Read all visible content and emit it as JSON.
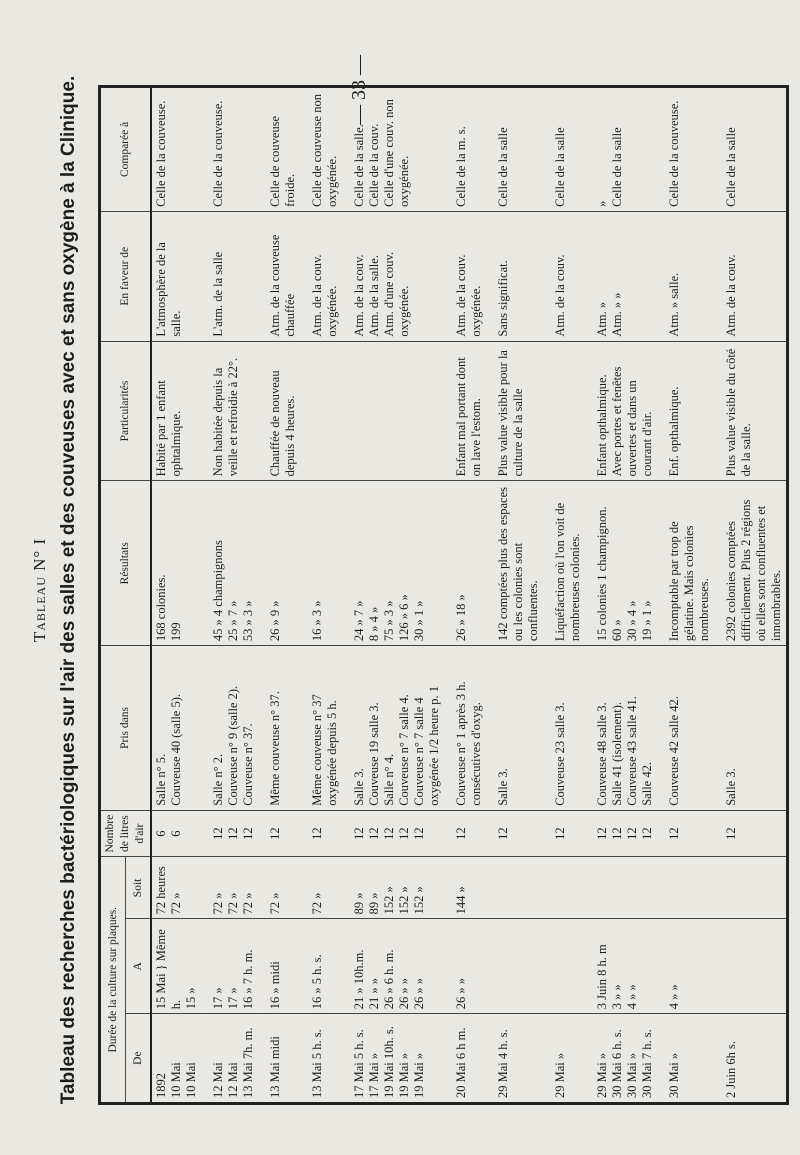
{
  "page_number": "— 33 —",
  "caption": "Tableau N° I",
  "title": "Tableau des recherches bactériologiques sur l'air des salles et des couveuses avec et sans oxygène à la Clinique.",
  "table": {
    "group_header": "Durée de la culture sur plaques.",
    "headers": [
      "De",
      "A",
      "Soit",
      "Nombre de litres d'air",
      "Pris dans",
      "Résultats",
      "Particularités",
      "En faveur de",
      "Comparée à"
    ],
    "rows": [
      [
        "1892\n10 Mai\n10 Mai",
        "15 Mai } Même h.\n15 »",
        "72 heures\n72 »",
        "6\n6",
        "Salle n° 5.\nCouveuse 40 (salle 5).",
        "168 colonies.\n199",
        "Habité par 1 enfant ophtalmique.",
        "L'atmosphère de la salle.",
        "Celle de la couveuse."
      ],
      [
        "12 Mai\n12 Mai\n13 Mai 7h. m.",
        "17 »\n17 »\n16 » 7 h. m.",
        "72 »\n72 »\n72 »",
        "12\n12\n12",
        "Salle n° 2.\nCouveuse n° 9 (salle 2).\nCouveuse n° 37.",
        "45 » 4 champignons\n25 » 7 »\n53 » 3 »",
        "Non habitée depuis la veille et refroidie à 22°.",
        "L'atm. de la salle",
        "Celle de la couveuse."
      ],
      [
        "13 Mai midi",
        "16 » midi",
        "72 »",
        "12",
        "Même couveuse n° 37.",
        "26 » 9 »",
        "Chauffée de nouveau depuis 4 heures.",
        "Atm. de la couveuse chauffée",
        "Celle de couveuse froide."
      ],
      [
        "13 Mai 5 h. s.",
        "16 » 5 h. s.",
        "72 »",
        "12",
        "Même couveuse n° 37 oxygénée depuis 5 h.",
        "16 » 3 »",
        "",
        "Atm. de la couv. oxygénée.",
        "Celle de couveuse non oxygénée."
      ],
      [
        "17 Mai 5 h. s.\n17 Mai »\n19 Mai 10h. s.\n19 Mai »\n19 Mai »",
        "21 » 10h.m.\n21 » »\n26 » 6 h. m.\n26 » »\n26 » »",
        "89 »\n89 »\n152 »\n152 »\n152 »",
        "12\n12\n12\n12\n12",
        "Salle 3.\nCouveuse 19 salle 3.\nSalle n° 4.\nCouveuse n° 7 salle 4.\nCouveuse n° 7 salle 4 oxygénée 1/2 heure p. 1",
        "24 » 7 »\n8 » 4 »\n75 » 3 »\n126 » 6 »\n30 » 1 »",
        "",
        "Atm. de la couv.\nAtm. de la salle.\nAtm. d'une couv. oxygénée.",
        "Celle de la salle.\nCelle de la couv.\nCelle d'une couv. non oxygénée."
      ],
      [
        "20 Mai 6 h m.",
        "26 » »",
        "144 »",
        "12",
        "Couveuse n° 1 après 3 h. consécutives d'oxyg.",
        "26 » 18 »",
        "Enfant mal portant dont on lave l'estom.",
        "Atm. de la couv. oxygénée.",
        "Celle de la m. s."
      ],
      [
        "29 Mai 4 h. s.",
        "",
        "",
        "12",
        "Salle 3.",
        "142 comptées plus des espaces ou les colonies sont confluentes.",
        "Plus value visible pour la culture de la salle",
        "Sans significat.",
        "Celle de la salle"
      ],
      [
        "29 Mai »",
        "",
        "",
        "12",
        "Couveuse 23 salle 3.",
        "Liquéfaction où l'on voit de nombreuses colonies.",
        "",
        "Atm. de la couv.",
        "Celle de la salle"
      ],
      [
        "29 Mai »\n30 Mai 6 h. s.\n30 Mai »\n30 Mai 7 h. s.",
        "3 Juin 8 h. m\n3 » »\n4 » »",
        "",
        "12\n12\n12\n12",
        "Couveuse 48 salle 3.\nSalle 41 (isolement).\nCouveuse 43 salle 41.\nSalle 42.",
        "15 colonies 1 champignon.\n60 »\n30 » 4 »\n19 » 1 »",
        "Enfant opthalmique.\nAvec portes et fenêtes ouvertes et dans un courant d'air.",
        "Atm. »\nAtm. » »",
        "»\nCelle de la salle"
      ],
      [
        "30 Mai »",
        "4 » »",
        "",
        "12",
        "Couveuse 42 salle 42.",
        "Incomptable par trop de gélatine. Mais colonies nombreuses.",
        "Enf. opthalmique.",
        "Atm. » salle.",
        "Celle de la couveuse."
      ],
      [
        "2 Juin 6h s.",
        "",
        "",
        "12",
        "Salle 3.",
        "2392 colonies comptées difficilement. Plus 2 régions où elles sont confluentes et innombrables.",
        "Plus value visible du côté de la salle.",
        "Atm. de la couv.",
        "Celle de la salle"
      ]
    ]
  }
}
